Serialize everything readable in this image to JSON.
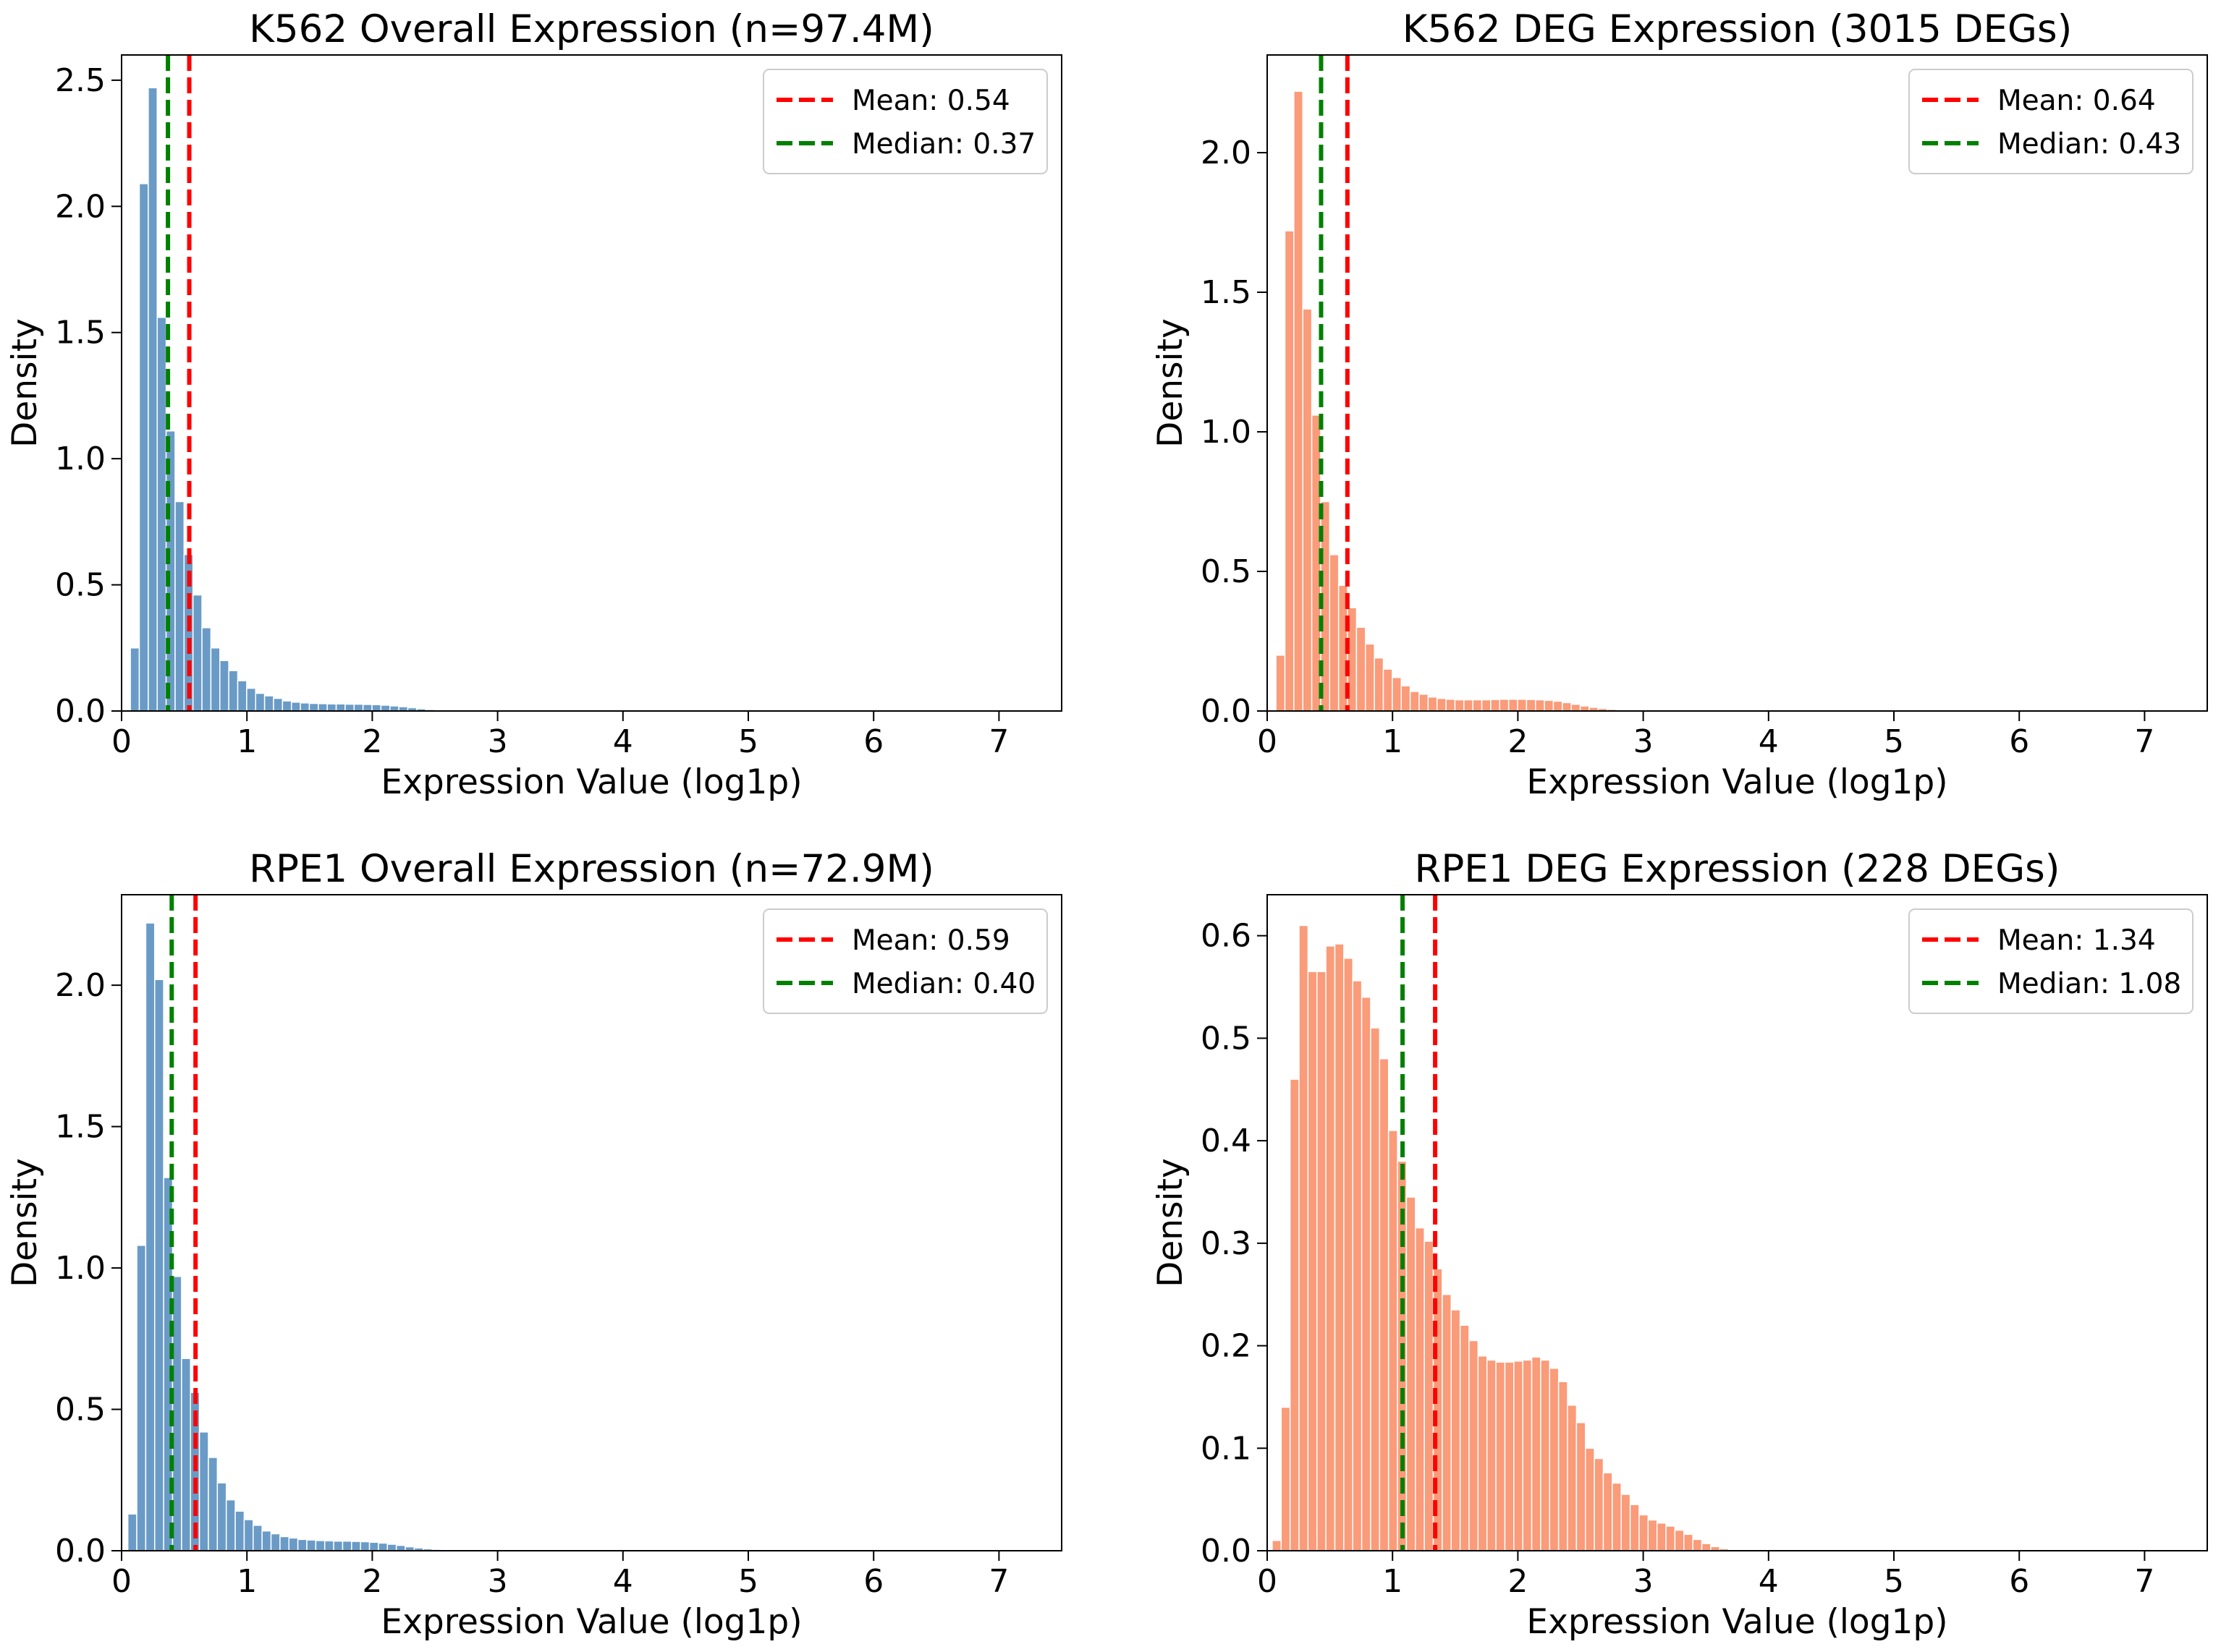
{
  "chart_data": [
    {
      "type": "histogram",
      "title": "K562 Overall Expression (n=97.4M)",
      "xlabel": "Expression Value (log1p)",
      "ylabel": "Density",
      "xlim": [
        0,
        7.5
      ],
      "ylim": [
        0,
        2.6
      ],
      "xticks": [
        0,
        1,
        2,
        3,
        4,
        5,
        6,
        7
      ],
      "yticks": [
        0.0,
        0.5,
        1.0,
        1.5,
        2.0,
        2.5
      ],
      "ytick_decimals": 1,
      "bar_color": "#6a9bc6",
      "bin_start": 0.07,
      "bin_width": 0.0714,
      "values": [
        0.25,
        2.09,
        2.47,
        1.56,
        1.11,
        0.83,
        0.62,
        0.46,
        0.33,
        0.25,
        0.2,
        0.16,
        0.12,
        0.09,
        0.07,
        0.06,
        0.05,
        0.04,
        0.035,
        0.032,
        0.03,
        0.029,
        0.028,
        0.028,
        0.027,
        0.027,
        0.026,
        0.025,
        0.023,
        0.02,
        0.017,
        0.013,
        0.009,
        0.006,
        0.004,
        0.003,
        0.002,
        0.001
      ],
      "lines": [
        {
          "label": "Mean: 0.54",
          "x": 0.54,
          "color": "#ff0000"
        },
        {
          "label": "Median: 0.37",
          "x": 0.37,
          "color": "#008000"
        }
      ]
    },
    {
      "type": "histogram",
      "title": "K562 DEG Expression (3015 DEGs)",
      "xlabel": "Expression Value (log1p)",
      "ylabel": "Density",
      "xlim": [
        0,
        7.5
      ],
      "ylim": [
        0,
        2.35
      ],
      "xticks": [
        0,
        1,
        2,
        3,
        4,
        5,
        6,
        7
      ],
      "yticks": [
        0.0,
        0.5,
        1.0,
        1.5,
        2.0
      ],
      "ytick_decimals": 1,
      "bar_color": "#fa9b79",
      "bin_start": 0.07,
      "bin_width": 0.0714,
      "values": [
        0.2,
        1.72,
        2.22,
        1.44,
        1.06,
        0.75,
        0.56,
        0.45,
        0.37,
        0.3,
        0.24,
        0.19,
        0.15,
        0.12,
        0.09,
        0.07,
        0.06,
        0.05,
        0.045,
        0.042,
        0.04,
        0.04,
        0.04,
        0.04,
        0.041,
        0.042,
        0.042,
        0.042,
        0.041,
        0.04,
        0.038,
        0.035,
        0.03,
        0.024,
        0.018,
        0.013,
        0.009,
        0.006,
        0.004,
        0.002,
        0.001
      ],
      "lines": [
        {
          "label": "Mean: 0.64",
          "x": 0.64,
          "color": "#ff0000"
        },
        {
          "label": "Median: 0.43",
          "x": 0.43,
          "color": "#008000"
        }
      ]
    },
    {
      "type": "histogram",
      "title": "RPE1 Overall Expression (n=72.9M)",
      "xlabel": "Expression Value (log1p)",
      "ylabel": "Density",
      "xlim": [
        0,
        7.5
      ],
      "ylim": [
        0,
        2.32
      ],
      "xticks": [
        0,
        1,
        2,
        3,
        4,
        5,
        6,
        7
      ],
      "yticks": [
        0.0,
        0.5,
        1.0,
        1.5,
        2.0
      ],
      "ytick_decimals": 1,
      "bar_color": "#6a9bc6",
      "bin_start": 0.05,
      "bin_width": 0.0714,
      "values": [
        0.13,
        1.08,
        2.22,
        2.02,
        1.32,
        0.97,
        0.68,
        0.56,
        0.42,
        0.33,
        0.24,
        0.18,
        0.14,
        0.11,
        0.09,
        0.07,
        0.06,
        0.05,
        0.045,
        0.04,
        0.038,
        0.036,
        0.035,
        0.034,
        0.034,
        0.033,
        0.032,
        0.03,
        0.027,
        0.023,
        0.019,
        0.014,
        0.01,
        0.007,
        0.005,
        0.003,
        0.002,
        0.001
      ],
      "lines": [
        {
          "label": "Mean: 0.59",
          "x": 0.59,
          "color": "#ff0000"
        },
        {
          "label": "Median: 0.40",
          "x": 0.4,
          "color": "#008000"
        }
      ]
    },
    {
      "type": "histogram",
      "title": "RPE1 DEG Expression (228 DEGs)",
      "xlabel": "Expression Value (log1p)",
      "ylabel": "Density",
      "xlim": [
        0,
        7.5
      ],
      "ylim": [
        0,
        0.64
      ],
      "xticks": [
        0,
        1,
        2,
        3,
        4,
        5,
        6,
        7
      ],
      "yticks": [
        0.0,
        0.1,
        0.2,
        0.3,
        0.4,
        0.5,
        0.6
      ],
      "ytick_decimals": 1,
      "bar_color": "#fa9b79",
      "bin_start": 0.04,
      "bin_width": 0.0714,
      "values": [
        0.01,
        0.14,
        0.46,
        0.61,
        0.565,
        0.565,
        0.59,
        0.592,
        0.578,
        0.556,
        0.54,
        0.51,
        0.48,
        0.41,
        0.38,
        0.345,
        0.315,
        0.302,
        0.275,
        0.25,
        0.235,
        0.22,
        0.205,
        0.19,
        0.186,
        0.184,
        0.184,
        0.185,
        0.186,
        0.189,
        0.186,
        0.178,
        0.165,
        0.142,
        0.125,
        0.1,
        0.09,
        0.076,
        0.066,
        0.055,
        0.045,
        0.035,
        0.03,
        0.027,
        0.024,
        0.02,
        0.016,
        0.011,
        0.007,
        0.004,
        0.002,
        0.001
      ],
      "lines": [
        {
          "label": "Mean: 1.34",
          "x": 1.34,
          "color": "#ff0000"
        },
        {
          "label": "Median: 1.08",
          "x": 1.08,
          "color": "#008000"
        }
      ]
    }
  ]
}
